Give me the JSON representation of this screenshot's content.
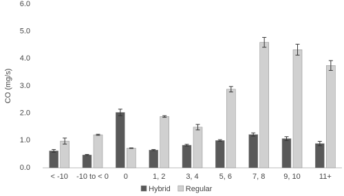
{
  "chart_data": {
    "type": "bar",
    "y_label": "CO (mg/s)",
    "categories": [
      "< -10",
      "-10 to < 0",
      "0",
      "1,  2",
      "3, 4",
      "5, 6",
      "7, 8",
      "9, 10",
      "11+"
    ],
    "series": [
      {
        "name": "Hybrid",
        "color": "#595959",
        "values": [
          0.62,
          0.47,
          2.03,
          0.65,
          0.83,
          1.0,
          1.22,
          1.07,
          0.89
        ],
        "errors": [
          0.05,
          0.02,
          0.12,
          0.02,
          0.03,
          0.03,
          0.06,
          0.07,
          0.08
        ]
      },
      {
        "name": "Regular",
        "color": "#d0d0d0",
        "values": [
          0.98,
          1.21,
          0.72,
          1.88,
          1.49,
          2.88,
          4.6,
          4.33,
          3.75
        ],
        "errors": [
          0.11,
          0.02,
          0.01,
          0.03,
          0.1,
          0.1,
          0.18,
          0.2,
          0.18
        ]
      }
    ],
    "ylim": [
      0,
      6
    ],
    "yticks": [
      {
        "value": 0,
        "label": "0.0"
      },
      {
        "value": 1,
        "label": "1.0"
      },
      {
        "value": 2,
        "label": "2.0"
      },
      {
        "value": 3,
        "label": "3.0"
      },
      {
        "value": 4,
        "label": "4.0"
      },
      {
        "value": 5,
        "label": "5.0"
      },
      {
        "value": 6,
        "label": "6.0"
      }
    ],
    "grid": false,
    "legend": "bottom"
  }
}
